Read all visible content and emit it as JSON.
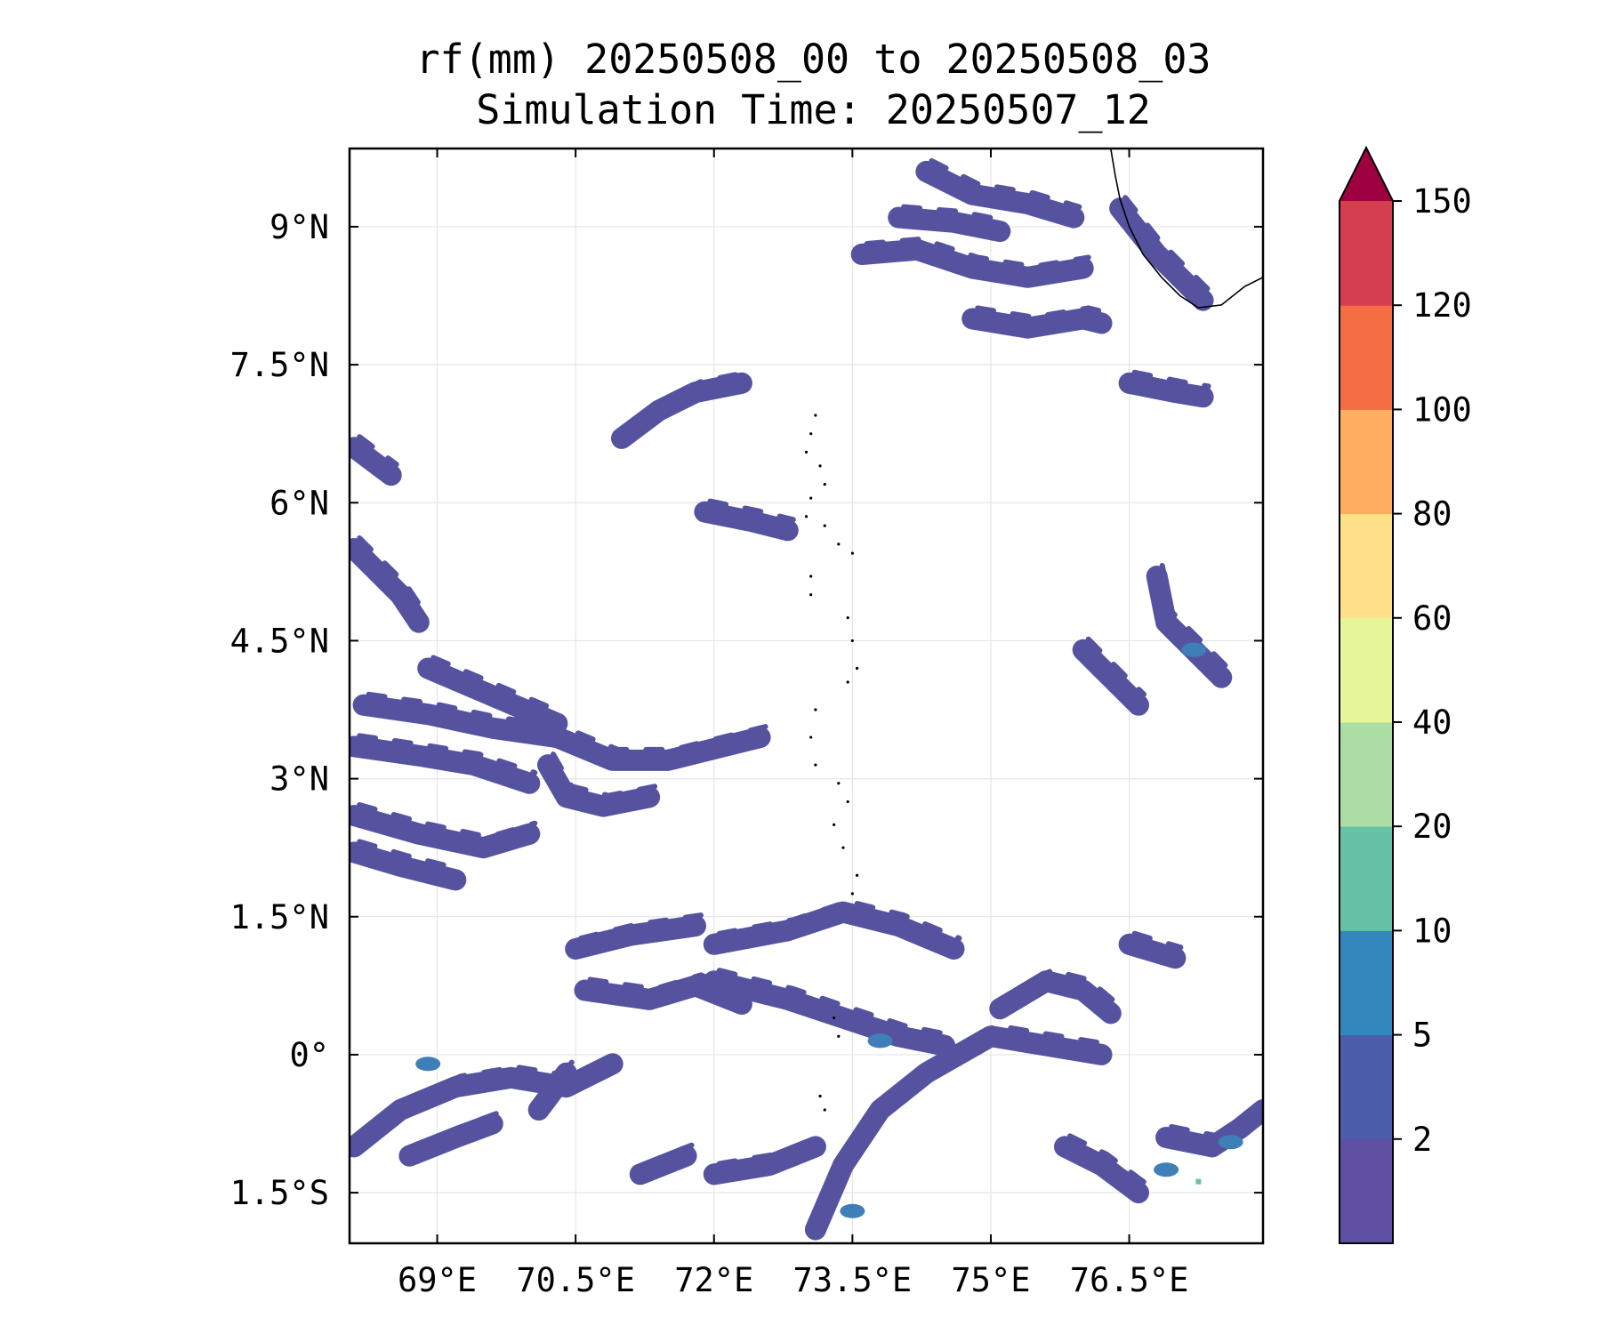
{
  "title": {
    "line1": "rf(mm) 20250508_00 to 20250508_03",
    "line2": "Simulation Time: 20250507_12"
  },
  "map": {
    "lon_range": [
      68.05,
      77.95
    ],
    "lat_range": [
      -2.05,
      9.85
    ],
    "lat_ticks": [
      {
        "value": 9,
        "label": "9°N"
      },
      {
        "value": 7.5,
        "label": "7.5°N"
      },
      {
        "value": 6,
        "label": "6°N"
      },
      {
        "value": 4.5,
        "label": "4.5°N"
      },
      {
        "value": 3,
        "label": "3°N"
      },
      {
        "value": 1.5,
        "label": "1.5°N"
      },
      {
        "value": 0,
        "label": "0°"
      },
      {
        "value": -1.5,
        "label": "1.5°S"
      }
    ],
    "lon_ticks": [
      {
        "value": 69,
        "label": "69°E"
      },
      {
        "value": 70.5,
        "label": "70.5°E"
      },
      {
        "value": 72,
        "label": "72°E"
      },
      {
        "value": 73.5,
        "label": "73.5°E"
      },
      {
        "value": 75,
        "label": "75°E"
      },
      {
        "value": 76.5,
        "label": "76.5°E"
      }
    ],
    "gridlines": true,
    "rain_bands": [
      [
        [
          68.1,
          -1.0
        ],
        [
          68.6,
          -0.6
        ],
        [
          69.2,
          -0.35
        ],
        [
          69.8,
          -0.25
        ],
        [
          70.4,
          -0.35
        ],
        [
          70.9,
          -0.1
        ]
      ],
      [
        [
          73.1,
          -1.9
        ],
        [
          73.4,
          -1.2
        ],
        [
          73.8,
          -0.6
        ],
        [
          74.3,
          -0.2
        ],
        [
          75.0,
          0.2
        ],
        [
          75.6,
          0.1
        ],
        [
          76.2,
          0.0
        ]
      ],
      [
        [
          72.0,
          0.8
        ],
        [
          72.8,
          0.6
        ],
        [
          73.4,
          0.4
        ],
        [
          74.0,
          0.2
        ],
        [
          74.5,
          0.1
        ]
      ],
      [
        [
          70.6,
          0.7
        ],
        [
          71.3,
          0.6
        ],
        [
          71.8,
          0.75
        ],
        [
          72.3,
          0.55
        ]
      ],
      [
        [
          72.0,
          1.2
        ],
        [
          72.8,
          1.35
        ],
        [
          73.4,
          1.55
        ],
        [
          74.0,
          1.4
        ],
        [
          74.6,
          1.15
        ]
      ],
      [
        [
          70.5,
          1.15
        ],
        [
          71.1,
          1.3
        ],
        [
          71.8,
          1.4
        ]
      ],
      [
        [
          75.1,
          0.5
        ],
        [
          75.6,
          0.8
        ],
        [
          76.0,
          0.7
        ],
        [
          76.3,
          0.45
        ]
      ],
      [
        [
          76.5,
          1.2
        ],
        [
          77.0,
          1.05
        ]
      ],
      [
        [
          68.1,
          2.6
        ],
        [
          68.8,
          2.4
        ],
        [
          69.5,
          2.25
        ],
        [
          70.0,
          2.4
        ]
      ],
      [
        [
          68.1,
          2.2
        ],
        [
          68.6,
          2.05
        ],
        [
          69.2,
          1.9
        ]
      ],
      [
        [
          68.2,
          3.8
        ],
        [
          68.9,
          3.7
        ],
        [
          69.6,
          3.55
        ],
        [
          70.3,
          3.45
        ],
        [
          70.9,
          3.2
        ],
        [
          71.5,
          3.2
        ],
        [
          72.1,
          3.35
        ],
        [
          72.5,
          3.45
        ]
      ],
      [
        [
          70.2,
          3.15
        ],
        [
          70.4,
          2.8
        ],
        [
          70.8,
          2.7
        ],
        [
          71.3,
          2.8
        ]
      ],
      [
        [
          68.1,
          3.35
        ],
        [
          68.8,
          3.25
        ],
        [
          69.4,
          3.15
        ],
        [
          70.0,
          2.95
        ]
      ],
      [
        [
          68.9,
          4.2
        ],
        [
          69.6,
          3.9
        ],
        [
          70.3,
          3.6
        ]
      ],
      [
        [
          68.1,
          6.6
        ],
        [
          68.5,
          6.3
        ]
      ],
      [
        [
          68.1,
          5.5
        ],
        [
          68.6,
          5.0
        ],
        [
          68.8,
          4.7
        ]
      ],
      [
        [
          71.0,
          6.7
        ],
        [
          71.4,
          7.0
        ],
        [
          71.8,
          7.2
        ],
        [
          72.3,
          7.3
        ]
      ],
      [
        [
          71.9,
          5.9
        ],
        [
          72.4,
          5.8
        ],
        [
          72.8,
          5.7
        ]
      ],
      [
        [
          73.6,
          8.7
        ],
        [
          74.2,
          8.75
        ],
        [
          74.8,
          8.55
        ],
        [
          75.4,
          8.45
        ],
        [
          76.0,
          8.55
        ]
      ],
      [
        [
          74.0,
          9.1
        ],
        [
          74.6,
          9.05
        ],
        [
          75.1,
          8.95
        ]
      ],
      [
        [
          74.3,
          9.6
        ],
        [
          74.8,
          9.35
        ],
        [
          75.4,
          9.25
        ],
        [
          75.9,
          9.1
        ]
      ],
      [
        [
          74.8,
          8.0
        ],
        [
          75.4,
          7.9
        ],
        [
          76.0,
          8.0
        ],
        [
          76.2,
          7.95
        ]
      ],
      [
        [
          76.4,
          9.2
        ],
        [
          76.8,
          8.7
        ],
        [
          77.3,
          8.2
        ]
      ],
      [
        [
          76.5,
          7.3
        ],
        [
          77.0,
          7.2
        ],
        [
          77.3,
          7.15
        ]
      ],
      [
        [
          76.8,
          5.2
        ],
        [
          76.9,
          4.7
        ],
        [
          77.3,
          4.3
        ],
        [
          77.5,
          4.1
        ]
      ],
      [
        [
          76.0,
          4.4
        ],
        [
          76.3,
          4.1
        ],
        [
          76.6,
          3.8
        ]
      ],
      [
        [
          76.9,
          -0.9
        ],
        [
          77.4,
          -1.0
        ],
        [
          77.7,
          -0.8
        ],
        [
          77.95,
          -0.6
        ]
      ],
      [
        [
          75.8,
          -1.0
        ],
        [
          76.2,
          -1.2
        ],
        [
          76.6,
          -1.5
        ]
      ],
      [
        [
          72.0,
          -1.3
        ],
        [
          72.6,
          -1.2
        ],
        [
          73.1,
          -1.0
        ]
      ],
      [
        [
          71.2,
          -1.3
        ],
        [
          71.7,
          -1.1
        ]
      ],
      [
        [
          68.7,
          -1.1
        ],
        [
          69.2,
          -0.9
        ],
        [
          69.6,
          -0.75
        ]
      ],
      [
        [
          70.1,
          -0.6
        ],
        [
          70.4,
          -0.2
        ]
      ]
    ],
    "rain_patches": [
      [
        73.5,
        -1.7
      ],
      [
        76.9,
        -1.25
      ],
      [
        77.6,
        -0.95
      ],
      [
        77.2,
        4.4
      ],
      [
        68.9,
        -0.1
      ],
      [
        73.8,
        0.15
      ]
    ],
    "coastline_points": [
      [
        76.3,
        9.85
      ],
      [
        76.35,
        9.55
      ],
      [
        76.4,
        9.3
      ],
      [
        76.5,
        9.0
      ],
      [
        76.65,
        8.7
      ],
      [
        76.85,
        8.45
      ],
      [
        77.05,
        8.25
      ],
      [
        77.25,
        8.12
      ],
      [
        77.5,
        8.15
      ],
      [
        77.75,
        8.35
      ],
      [
        77.95,
        8.45
      ]
    ],
    "islands": [
      [
        73.1,
        6.95
      ],
      [
        73.05,
        6.75
      ],
      [
        73.0,
        6.55
      ],
      [
        73.15,
        6.4
      ],
      [
        73.2,
        6.2
      ],
      [
        73.05,
        6.05
      ],
      [
        73.0,
        5.85
      ],
      [
        73.2,
        5.75
      ],
      [
        73.35,
        5.55
      ],
      [
        73.5,
        5.45
      ],
      [
        73.05,
        5.2
      ],
      [
        73.05,
        5.0
      ],
      [
        73.45,
        4.75
      ],
      [
        73.5,
        4.5
      ],
      [
        73.55,
        4.2
      ],
      [
        73.45,
        4.05
      ],
      [
        73.1,
        3.75
      ],
      [
        73.05,
        3.45
      ],
      [
        73.1,
        3.15
      ],
      [
        73.35,
        2.95
      ],
      [
        73.45,
        2.75
      ],
      [
        73.3,
        2.5
      ],
      [
        73.4,
        2.25
      ],
      [
        73.55,
        1.95
      ],
      [
        73.5,
        1.75
      ],
      [
        73.3,
        0.4
      ],
      [
        73.35,
        0.2
      ],
      [
        73.15,
        -0.45
      ],
      [
        73.2,
        -0.6
      ]
    ]
  },
  "colorbar": {
    "extend_color": "#9e0142",
    "levels": [
      {
        "label": "150",
        "color": "#d53e4f"
      },
      {
        "label": "120",
        "color": "#f46d43"
      },
      {
        "label": "100",
        "color": "#fdae61"
      },
      {
        "label": "80",
        "color": "#fee08b"
      },
      {
        "label": "60",
        "color": "#e6f598"
      },
      {
        "label": "40",
        "color": "#abdda4"
      },
      {
        "label": "20",
        "color": "#66c2a5"
      },
      {
        "label": "10",
        "color": "#3288bd"
      },
      {
        "label": "5",
        "color": "#5e4fa2"
      },
      {
        "label": "2",
        "color": ""
      }
    ],
    "band_colors": [
      "#5e4fa2",
      "#4b5dab",
      "#3288bd",
      "#66c2a5",
      "#abdda4",
      "#e6f598",
      "#fee08b",
      "#fdae61",
      "#f46d43",
      "#d53e4f"
    ]
  },
  "colors": {
    "rain_low": "#5553a0",
    "rain_mid": "#3f7fb8",
    "rain_hi": "#66c2a5"
  }
}
